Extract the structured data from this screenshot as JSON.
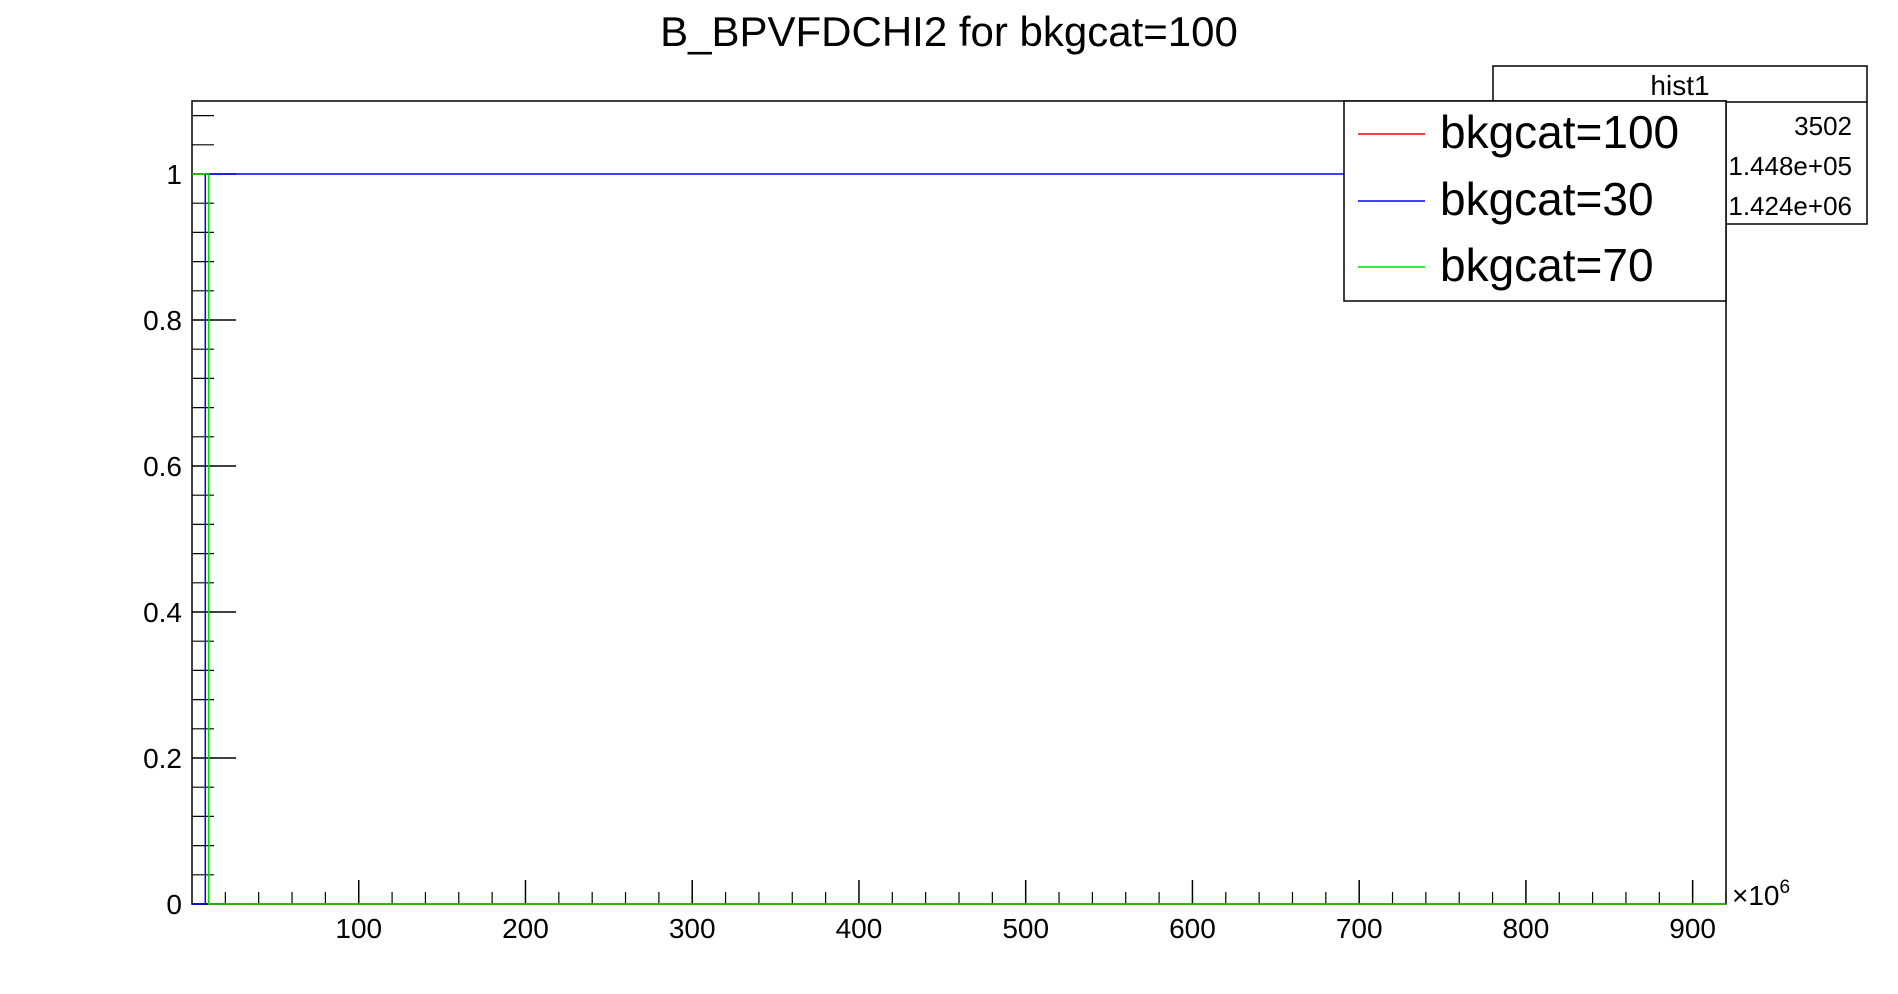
{
  "chart_data": {
    "type": "line",
    "title": "B_BPVFDCHI2 for bkgcat=100",
    "xlabel": "",
    "ylabel": "",
    "x_multiplier": "×10",
    "x_multiplier_exp": "6",
    "xlim": [
      0,
      920
    ],
    "ylim": [
      0,
      1.1
    ],
    "x_ticks": [
      100,
      200,
      300,
      400,
      500,
      600,
      700,
      800,
      900
    ],
    "x_tick_labels": [
      "100",
      "200",
      "300",
      "400",
      "500",
      "600",
      "700",
      "800",
      "900"
    ],
    "y_ticks": [
      0,
      0.2,
      0.4,
      0.6,
      0.8,
      1
    ],
    "y_tick_labels": [
      "0",
      "0.2",
      "0.4",
      "0.6",
      "0.8",
      "1"
    ],
    "grid": false,
    "legend_position": "top-right",
    "series": [
      {
        "name": "bkgcat=100",
        "color": "#ff0000",
        "points": [
          [
            0,
            1
          ],
          [
            10,
            1
          ],
          [
            10,
            0
          ],
          [
            920,
            0
          ]
        ]
      },
      {
        "name": "bkgcat=30",
        "color": "#0000ff",
        "points": [
          [
            0,
            0
          ],
          [
            8,
            0
          ],
          [
            8,
            1
          ],
          [
            920,
            1
          ]
        ]
      },
      {
        "name": "bkgcat=70",
        "color": "#00dd00",
        "points": [
          [
            0,
            1
          ],
          [
            10,
            1
          ],
          [
            10,
            0
          ],
          [
            920,
            0
          ]
        ]
      }
    ],
    "stats_box": {
      "title": "hist1",
      "rows": [
        "3502",
        "1.448e+05",
        "1.424e+06"
      ]
    }
  }
}
